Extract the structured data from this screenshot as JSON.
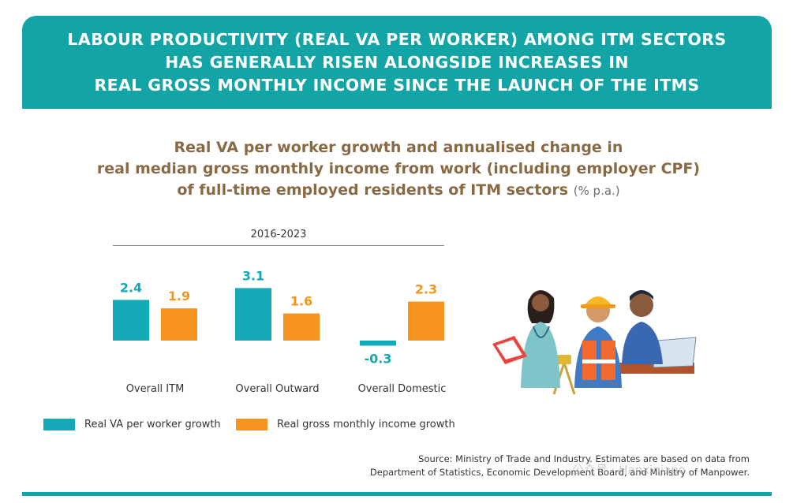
{
  "banner": {
    "lines": [
      "LABOUR PRODUCTIVITY (REAL VA PER WORKER) AMONG ITM SECTORS",
      "HAS GENERALLY RISEN ALONGSIDE INCREASES IN",
      "REAL GROSS MONTHLY INCOME SINCE THE LAUNCH OF THE ITMS"
    ]
  },
  "subtitle": {
    "lines": [
      "Real VA per worker growth and annualised change in",
      "real median gross monthly income from work (including employer CPF)",
      "of full-time employed residents of ITM sectors"
    ],
    "unit": "(% p.a.)"
  },
  "colors": {
    "banner": "#13a4a6",
    "va": "#13a9b7",
    "income": "#f7941d",
    "title_brown": "#8a6a44"
  },
  "chart_data": {
    "type": "bar",
    "period": "2016-2023",
    "categories": [
      "Overall ITM",
      "Overall Outward",
      "Overall Domestic"
    ],
    "series": [
      {
        "name": "Real VA per worker growth",
        "values": [
          2.4,
          3.1,
          -0.3
        ]
      },
      {
        "name": "Real gross monthly income growth",
        "values": [
          1.9,
          1.6,
          2.3
        ]
      }
    ],
    "value_labels": [
      [
        "2.4",
        "1.9"
      ],
      [
        "3.1",
        "1.6"
      ],
      [
        "-0.3",
        "2.3"
      ]
    ],
    "grid": false,
    "legend": "bottom"
  },
  "source": {
    "lines": [
      "Source: Ministry of Trade and Industry. Estimates are based on data from",
      "Department of Statistics, Economic Development Board, and Ministry of Manpower."
    ]
  },
  "watermark": "公众号 · Hanxinjapo",
  "illustration_icon": "workers-illustration"
}
